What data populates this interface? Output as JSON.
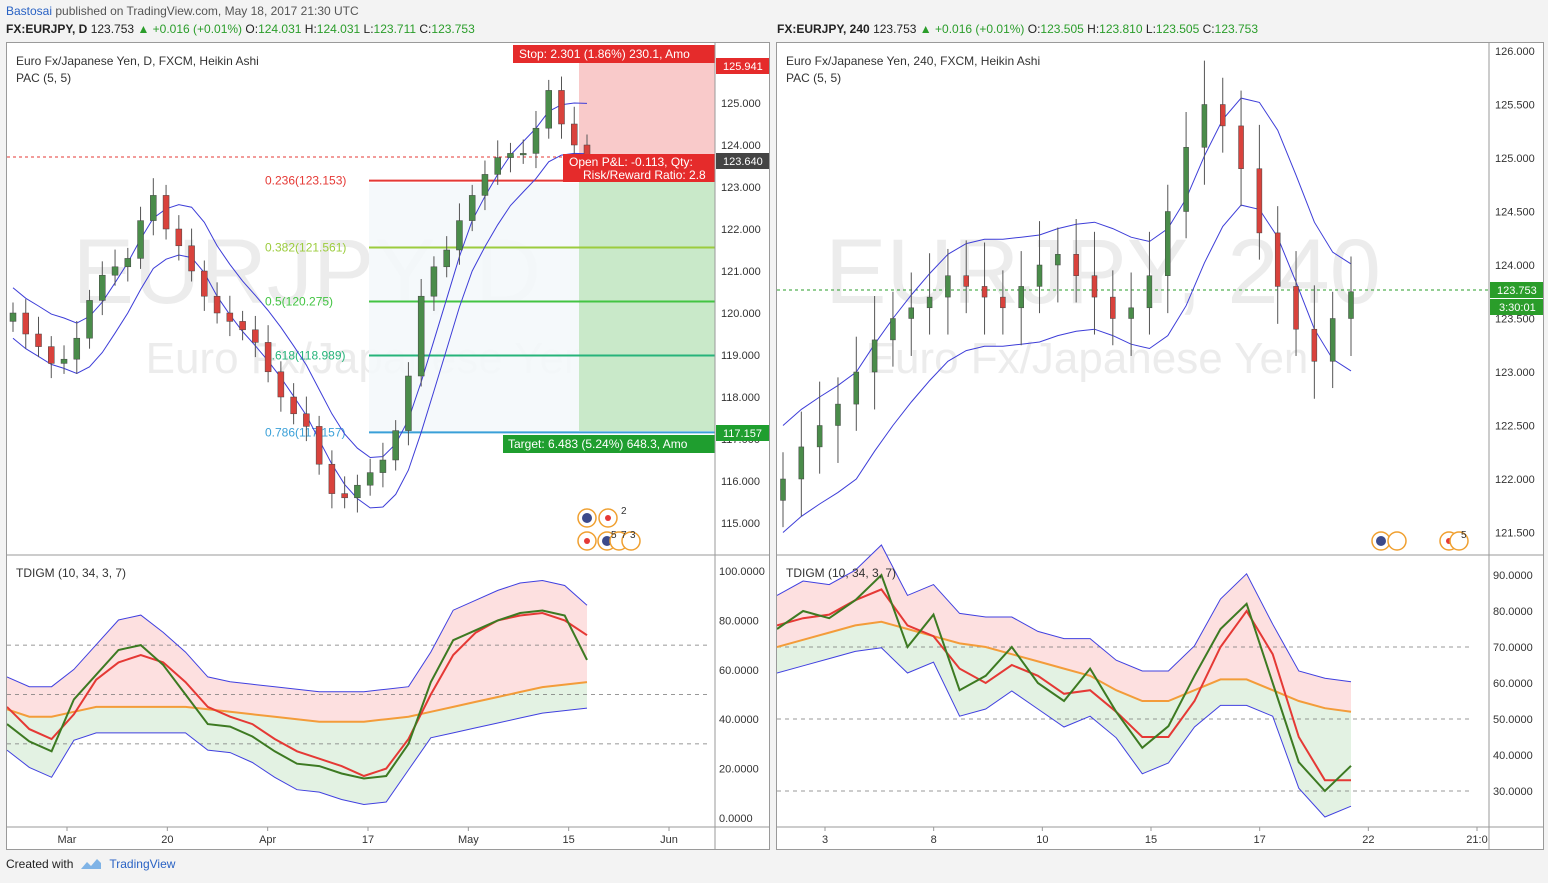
{
  "header": {
    "author": "Bastosai",
    "published": "published on TradingView.com, May 18, 2017 21:30 UTC"
  },
  "left_chart": {
    "symbol": "FX:EURJPY, D",
    "last": "123.753",
    "change": "▲ +0.016 (+0.01%)",
    "o_label": "O:",
    "o": "124.031",
    "h_label": "H:",
    "h": "124.031",
    "l_label": "L:",
    "l": "123.711",
    "c_label": "C:",
    "c": "123.753",
    "title": "Euro Fx/Japanese Yen, D, FXCM, Heikin Ashi",
    "indicator": "PAC (5, 5)",
    "watermark_big": "EURJPY, D",
    "watermark_small": "Euro Fx/Japanese Yen",
    "stop_label": "Stop: 2.301 (1.86%) 230.1, Amo",
    "target_label": "Target: 6.483 (5.24%) 648.3, Amo",
    "pnl_label": "Open P&L: -0.113, Qty:",
    "rr_label": "Risk/Reward Ratio: 2.8",
    "price_tags": {
      "stop": "125.941",
      "current": "123.640",
      "target": "117.157"
    },
    "event_labels": [
      "2",
      "5",
      "7",
      "3"
    ],
    "fib_levels": [
      {
        "label": "0.236(123.153)",
        "value": 123.153,
        "color": "#e53935"
      },
      {
        "label": "0.382(121.561)",
        "value": 121.561,
        "color": "#9ccc3d"
      },
      {
        "label": "0.5(120.275)",
        "value": 120.275,
        "color": "#43c443"
      },
      {
        "label": "0.618(118.989)",
        "value": 118.989,
        "color": "#26b47a"
      },
      {
        "label": "0.786(117.157)",
        "value": 117.157,
        "color": "#3aa0d8"
      }
    ],
    "price_axis": [
      "125.000",
      "124.000",
      "123.000",
      "122.000",
      "121.000",
      "120.000",
      "119.000",
      "118.000",
      "117.000",
      "116.000",
      "115.000"
    ],
    "time_axis": [
      "Mar",
      "20",
      "Apr",
      "17",
      "May",
      "15",
      "Jun"
    ],
    "osc_title": "TDIGM (10, 34, 3, 7)",
    "osc_axis": [
      "100.0000",
      "80.0000",
      "60.0000",
      "40.0000",
      "20.0000",
      "0.0000"
    ]
  },
  "right_chart": {
    "symbol": "FX:EURJPY, 240",
    "last": "123.753",
    "change": "▲ +0.016 (+0.01%)",
    "o_label": "O:",
    "o": "123.505",
    "h_label": "H:",
    "h": "123.810",
    "l_label": "L:",
    "l": "123.505",
    "c_label": "C:",
    "c": "123.753",
    "title": "Euro Fx/Japanese Yen, 240, FXCM, Heikin Ashi",
    "indicator": "PAC (5, 5)",
    "watermark_big": "EURJPY, 240",
    "watermark_small": "Euro Fx/Japanese Yen",
    "price_tags": {
      "current": "123.753",
      "countdown": "3:30:01"
    },
    "event_labels": [
      "5"
    ],
    "price_axis": [
      "126.000",
      "125.500",
      "125.000",
      "124.500",
      "124.000",
      "123.500",
      "123.000",
      "122.500",
      "122.000",
      "121.500"
    ],
    "time_axis": [
      "3",
      "8",
      "10",
      "15",
      "17",
      "22",
      "21:0"
    ],
    "osc_title": "TDIGM (10, 34, 3, 7)",
    "osc_axis": [
      "90.0000",
      "80.0000",
      "70.0000",
      "60.0000",
      "50.0000",
      "40.0000",
      "30.0000"
    ]
  },
  "footer": {
    "created_with": "Created with",
    "brand": "TradingView"
  },
  "colors": {
    "bull": "#4a8c4a",
    "bear": "#d9423c",
    "pac": "#3d3dd8",
    "bg_panel": "#ffffff",
    "accent_blue": "#2962c4"
  },
  "chart_data": [
    {
      "type": "candlestick",
      "title": "Euro Fx/Japanese Yen, D, FXCM, Heikin Ashi",
      "ylim": [
        114.5,
        126.5
      ],
      "x_ticks": [
        "Mar",
        "20",
        "Apr",
        "17",
        "May",
        "15",
        "Jun"
      ],
      "close_approx": [
        120.0,
        119.5,
        119.2,
        118.8,
        118.9,
        119.4,
        120.3,
        120.9,
        121.1,
        121.3,
        122.2,
        122.8,
        122.0,
        121.6,
        121.0,
        120.4,
        120.0,
        119.8,
        119.6,
        119.3,
        118.6,
        118.0,
        117.6,
        117.3,
        116.4,
        115.7,
        115.6,
        115.9,
        116.2,
        116.5,
        117.2,
        118.5,
        120.4,
        121.1,
        121.5,
        122.2,
        122.8,
        123.3,
        123.7,
        123.8,
        123.8,
        124.4,
        125.3,
        124.5,
        124.0,
        123.75
      ],
      "fib_levels": [
        123.153,
        121.561,
        120.275,
        118.989,
        117.157
      ],
      "stop": 125.941,
      "target": 117.157,
      "entry": 123.64
    },
    {
      "type": "line",
      "title": "TDIGM (10, 34, 3, 7)",
      "ylim": [
        0,
        100
      ],
      "hlines": [
        30,
        50,
        70
      ],
      "series": [
        {
          "name": "",
          "values": [
            38,
            31,
            27,
            48,
            58,
            68,
            70,
            62,
            50,
            38,
            37,
            33,
            27,
            22,
            21,
            18,
            16,
            17,
            30,
            55,
            72,
            76,
            80,
            83,
            84,
            82,
            64
          ]
        },
        {
          "name": "",
          "values": [
            45,
            36,
            32,
            42,
            56,
            63,
            66,
            63,
            55,
            45,
            41,
            38,
            32,
            27,
            24,
            21,
            17,
            20,
            32,
            50,
            66,
            75,
            80,
            82,
            83,
            80,
            74
          ]
        },
        {
          "name": "",
          "values": [
            44,
            41,
            41,
            43,
            45,
            45,
            45,
            45,
            45,
            44,
            43,
            42,
            41,
            40,
            39,
            39,
            39,
            40,
            41,
            43,
            45,
            47,
            49,
            51,
            53,
            54,
            55
          ]
        }
      ]
    },
    {
      "type": "candlestick",
      "title": "Euro Fx/Japanese Yen, 240, FXCM, Heikin Ashi",
      "ylim": [
        121.3,
        126.1
      ],
      "x_ticks": [
        "3",
        "8",
        "10",
        "15",
        "17",
        "22",
        "21:0"
      ],
      "close_approx": [
        122.0,
        122.3,
        122.5,
        122.7,
        123.0,
        123.3,
        123.5,
        123.6,
        123.7,
        123.9,
        123.8,
        123.7,
        123.6,
        123.8,
        124.0,
        124.1,
        123.9,
        123.7,
        123.5,
        123.6,
        123.9,
        124.5,
        125.1,
        125.5,
        125.3,
        124.9,
        124.3,
        123.8,
        123.4,
        123.1,
        123.5,
        123.75
      ],
      "current": 123.753
    },
    {
      "type": "line",
      "title": "TDIGM (10, 34, 3, 7)",
      "ylim": [
        25,
        92
      ],
      "hlines": [
        30,
        50,
        70
      ],
      "series": [
        {
          "name": "",
          "values": [
            75,
            80,
            78,
            83,
            90,
            70,
            79,
            58,
            62,
            70,
            60,
            55,
            64,
            52,
            42,
            48,
            62,
            75,
            82,
            60,
            38,
            30,
            37
          ]
        },
        {
          "name": "",
          "values": [
            76,
            78,
            79,
            83,
            86,
            76,
            73,
            64,
            60,
            65,
            62,
            57,
            58,
            52,
            45,
            45,
            55,
            70,
            80,
            68,
            45,
            33,
            33
          ]
        },
        {
          "name": "",
          "values": [
            70,
            72,
            74,
            76,
            77,
            75,
            73,
            71,
            70,
            68,
            66,
            64,
            62,
            58,
            55,
            55,
            58,
            61,
            61,
            58,
            55,
            53,
            52
          ]
        }
      ]
    }
  ]
}
